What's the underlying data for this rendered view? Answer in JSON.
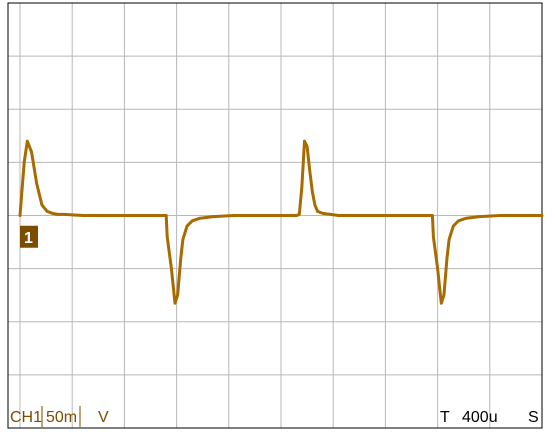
{
  "chart_data": {
    "type": "line",
    "title": "",
    "xlabel": "",
    "ylabel": "",
    "grid": true,
    "x_divisions": 10,
    "y_divisions": 8,
    "xlim": [
      0,
      10
    ],
    "ylim": [
      -4,
      4
    ],
    "x_unit": "div",
    "y_unit": "div",
    "series": [
      {
        "channel": "CH1",
        "color": "#A86B00",
        "x": [
          0,
          0.08,
          0.14,
          0.22,
          0.32,
          0.42,
          0.52,
          0.62,
          0.72,
          0.85,
          1.2,
          1.8,
          2.4,
          2.8,
          2.82,
          2.9,
          2.97,
          3.02,
          3.08,
          3.12,
          3.2,
          3.3,
          3.45,
          3.7,
          4.1,
          4.7,
          5.3,
          5.35,
          5.4,
          5.45,
          5.5,
          5.55,
          5.6,
          5.65,
          5.7,
          5.8,
          5.95,
          6.1,
          6.4,
          7.0,
          7.6,
          7.9,
          7.92,
          8.0,
          8.07,
          8.12,
          8.18,
          8.22,
          8.3,
          8.4,
          8.55,
          8.8,
          9.2,
          9.6,
          10.0
        ],
        "y": [
          0,
          1.0,
          1.4,
          1.2,
          0.6,
          0.2,
          0.08,
          0.04,
          0.02,
          0.02,
          0.0,
          0.0,
          0.0,
          0.0,
          -0.4,
          -1.0,
          -1.65,
          -1.5,
          -0.8,
          -0.45,
          -0.2,
          -0.1,
          -0.05,
          -0.02,
          0.0,
          0.0,
          0.0,
          0.02,
          0.55,
          1.4,
          1.3,
          0.85,
          0.45,
          0.2,
          0.08,
          0.04,
          0.02,
          0.0,
          0.0,
          0.0,
          0.0,
          0.0,
          -0.4,
          -1.0,
          -1.65,
          -1.5,
          -0.8,
          -0.45,
          -0.2,
          -0.1,
          -0.05,
          -0.02,
          0.0,
          0.0,
          0.0
        ]
      }
    ]
  },
  "marker": {
    "label": "1",
    "level_div": -0.4,
    "color": "#7A4D00"
  },
  "status": {
    "channel": "CH1",
    "volts_per_div": "50m",
    "volts_unit": "V",
    "time_prefix": "T",
    "time_per_div": "400u",
    "time_unit": "S",
    "text_color": "#7A4D00"
  },
  "colors": {
    "grid": "#b8b8b8",
    "frame": "#000000",
    "background": "#ffffff"
  }
}
